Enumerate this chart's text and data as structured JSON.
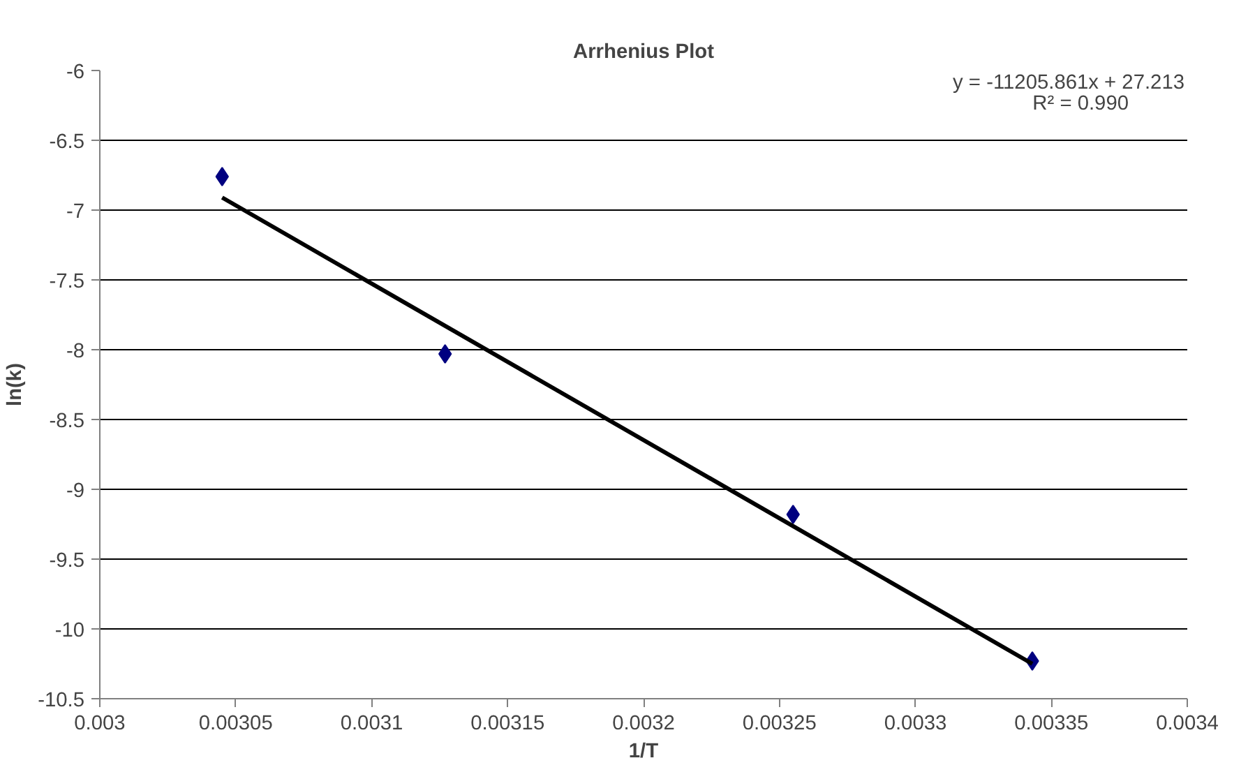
{
  "chart_data": {
    "type": "scatter",
    "title": "Arrhenius Plot",
    "xlabel": "1/T",
    "ylabel": "ln(k)",
    "annotations": [
      "y = -11205.861x + 27.213",
      "R² = 0.990"
    ],
    "series": [
      {
        "color": "#000080",
        "x": [
          0.003045,
          0.003127,
          0.003255,
          0.003343
        ],
        "values": [
          -6.76,
          -8.03,
          -9.18,
          -10.23
        ],
        "marker": "diamond"
      },
      {
        "type": "line",
        "color": "#000000",
        "x": [
          0.003045,
          0.003343
        ],
        "values": [
          -6.91,
          -10.25
        ],
        "line_style": "solid"
      }
    ],
    "xlim": [
      0.003,
      0.0034
    ],
    "xticks": [
      0.003,
      0.00305,
      0.0031,
      0.00315,
      0.0032,
      0.00325,
      0.0033,
      0.00335,
      0.0034
    ],
    "ylim": [
      -10.5,
      -6
    ],
    "yticks": [
      -10.5,
      -10,
      -9.5,
      -9,
      -8.5,
      -8,
      -7.5,
      -7,
      -6.5,
      -6
    ],
    "grid": "y"
  }
}
